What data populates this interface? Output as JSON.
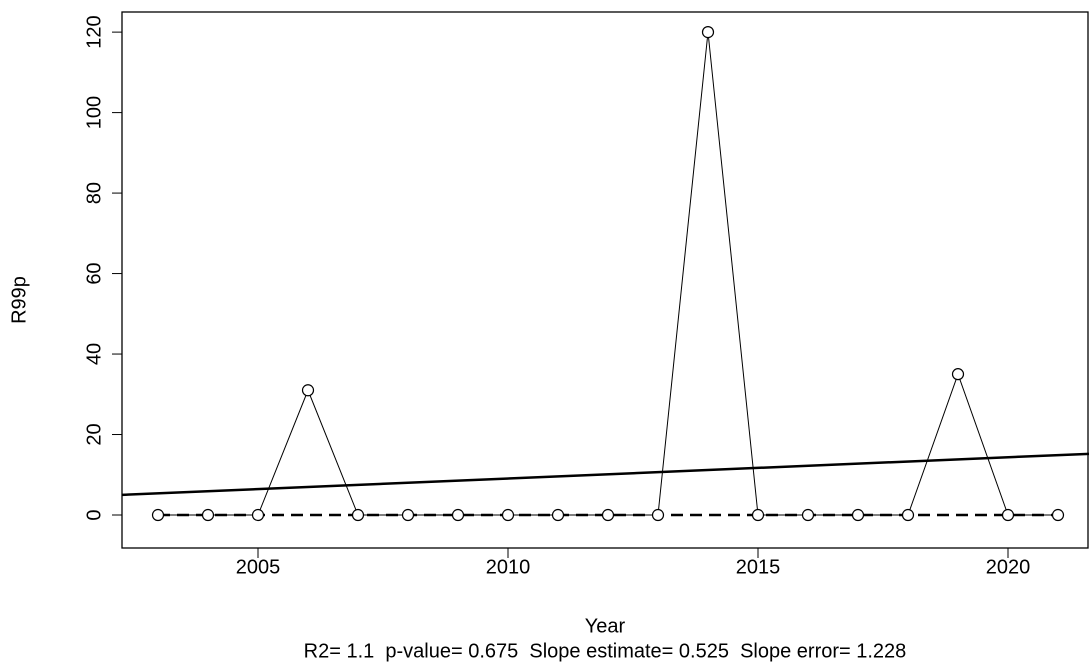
{
  "chart_data": {
    "type": "line",
    "x_label": "Year",
    "y_label": "R99p",
    "annotation": "R2= 1.1  p-value= 0.675  Slope estimate= 0.525  Slope error= 1.228",
    "x": [
      2003,
      2004,
      2005,
      2006,
      2007,
      2008,
      2009,
      2010,
      2011,
      2012,
      2013,
      2014,
      2015,
      2016,
      2017,
      2018,
      2019,
      2020,
      2021
    ],
    "series": [
      {
        "color": "#000000",
        "values": [
          0,
          0,
          0,
          31,
          0,
          0,
          0,
          0,
          0,
          0,
          0,
          120,
          0,
          0,
          0,
          0,
          35,
          0,
          0
        ]
      }
    ],
    "trend": {
      "x": [
        2002.28,
        2021.62
      ],
      "values": [
        5,
        15.2
      ],
      "color": "#000000"
    },
    "zero_line": {
      "x": [
        2003,
        2021
      ],
      "values": [
        0,
        0
      ],
      "color": "#000000",
      "dashed": true
    },
    "xlim": [
      2002.28,
      2021.62
    ],
    "ylim": [
      -8.2,
      125
    ],
    "xticks": [
      2005,
      2010,
      2015,
      2020
    ],
    "yticks": [
      0,
      20,
      40,
      60,
      80,
      100,
      120
    ],
    "grid": false
  }
}
